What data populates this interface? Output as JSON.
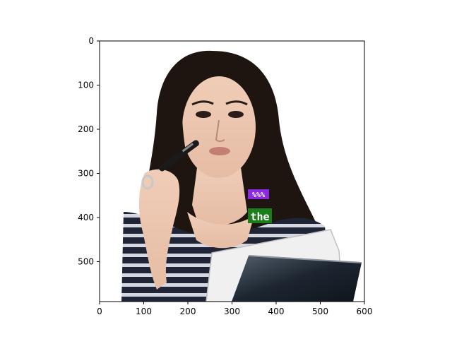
{
  "axes": {
    "x_ticks": [
      "0",
      "100",
      "200",
      "300",
      "400",
      "500",
      "600"
    ],
    "y_ticks": [
      "0",
      "100",
      "200",
      "300",
      "400",
      "500"
    ]
  },
  "annotations": [
    {
      "label": "%%%",
      "color": "#8a2be2"
    },
    {
      "label": "the",
      "color": "#1a7f1a"
    }
  ],
  "photo": {
    "subject": "woman-holding-pen-and-binders",
    "hair_color": "#1e1410",
    "skin_color": "#ecc7b0",
    "top_stripe_dark": "#1f2436",
    "top_stripe_light": "#d5d8e0",
    "binder_color": "#1c2530"
  }
}
